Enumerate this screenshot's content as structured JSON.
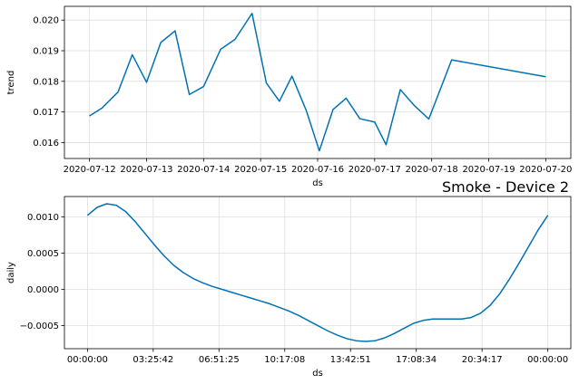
{
  "title": "Smoke - Device 2",
  "colors": {
    "line": "#0072B2",
    "grid": "#dddddd",
    "frame": "#000000"
  },
  "chart_data": [
    {
      "type": "line",
      "xlabel": "ds",
      "ylabel": "trend",
      "x_tick_labels": [
        "2020-07-12",
        "2020-07-13",
        "2020-07-14",
        "2020-07-15",
        "2020-07-16",
        "2020-07-17",
        "2020-07-18",
        "2020-07-19",
        "2020-07-20"
      ],
      "y_tick_labels": [
        "0.016",
        "0.017",
        "0.018",
        "0.019",
        "0.020"
      ],
      "x_ticks_days": [
        0,
        1,
        2,
        3,
        4,
        5,
        6,
        7,
        8
      ],
      "y_ticks": [
        0.016,
        0.017,
        0.018,
        0.019,
        0.02
      ],
      "xlim_days": [
        -0.44,
        8.44
      ],
      "ylim": [
        0.01548,
        0.02045
      ],
      "grid": true,
      "x_days": [
        0,
        0.22,
        0.5,
        0.75,
        1.0,
        1.25,
        1.5,
        1.75,
        2.0,
        2.3,
        2.55,
        2.85,
        3.1,
        3.33,
        3.55,
        3.8,
        4.03,
        4.27,
        4.5,
        4.74,
        5.0,
        5.2,
        5.45,
        5.7,
        5.95,
        6.35,
        8.0
      ],
      "y": [
        0.01687,
        0.01713,
        0.01765,
        0.01887,
        0.01797,
        0.01927,
        0.01965,
        0.01757,
        0.01783,
        0.01905,
        0.01937,
        0.02022,
        0.01795,
        0.01735,
        0.01817,
        0.01705,
        0.01573,
        0.01708,
        0.01745,
        0.01678,
        0.01667,
        0.01593,
        0.01773,
        0.0172,
        0.01677,
        0.0187,
        0.01815
      ]
    },
    {
      "type": "line",
      "xlabel": "ds",
      "ylabel": "daily",
      "x_tick_labels": [
        "00:00:00",
        "03:25:42",
        "06:51:25",
        "10:17:08",
        "13:42:51",
        "17:08:34",
        "20:34:17",
        "00:00:00"
      ],
      "y_tick_labels": [
        "−0.0005",
        "0.0000",
        "0.0005",
        "0.0010"
      ],
      "x_ticks_hours": [
        0,
        3.4283,
        6.8569,
        10.2856,
        13.7142,
        17.1428,
        20.5714,
        24
      ],
      "y_ticks": [
        -0.0005,
        0.0,
        0.0005,
        0.001
      ],
      "xlim_hours": [
        -1.2,
        25.2
      ],
      "ylim": [
        -0.00082,
        0.00128
      ],
      "grid": true,
      "x_hours": [
        0,
        0.5,
        1.0,
        1.5,
        2.0,
        2.5,
        3.0,
        3.5,
        4.0,
        4.5,
        5.0,
        5.5,
        6.0,
        6.5,
        7.0,
        7.5,
        8.0,
        8.5,
        9.0,
        9.5,
        10.0,
        10.5,
        11.0,
        11.5,
        12.0,
        12.5,
        13.0,
        13.5,
        14.0,
        14.5,
        15.0,
        15.5,
        16.0,
        16.5,
        17.0,
        17.5,
        18.0,
        18.5,
        19.0,
        19.5,
        20.0,
        20.5,
        21.0,
        21.5,
        22.0,
        22.5,
        23.0,
        23.5,
        24.0
      ],
      "y": [
        0.00102,
        0.00113,
        0.00118,
        0.00116,
        0.00107,
        0.00093,
        0.00077,
        0.00061,
        0.00046,
        0.00033,
        0.00023,
        0.00015,
        9e-05,
        4e-05,
        0.0,
        -4e-05,
        -8e-05,
        -0.00012,
        -0.00016,
        -0.0002,
        -0.00025,
        -0.0003,
        -0.00036,
        -0.00043,
        -0.0005,
        -0.00057,
        -0.00063,
        -0.00068,
        -0.00071,
        -0.00072,
        -0.00071,
        -0.00067,
        -0.00061,
        -0.00054,
        -0.00047,
        -0.00043,
        -0.00041,
        -0.00041,
        -0.00041,
        -0.00041,
        -0.00039,
        -0.00033,
        -0.00022,
        -6e-05,
        0.00014,
        0.00036,
        0.00059,
        0.00082,
        0.00102
      ]
    }
  ]
}
